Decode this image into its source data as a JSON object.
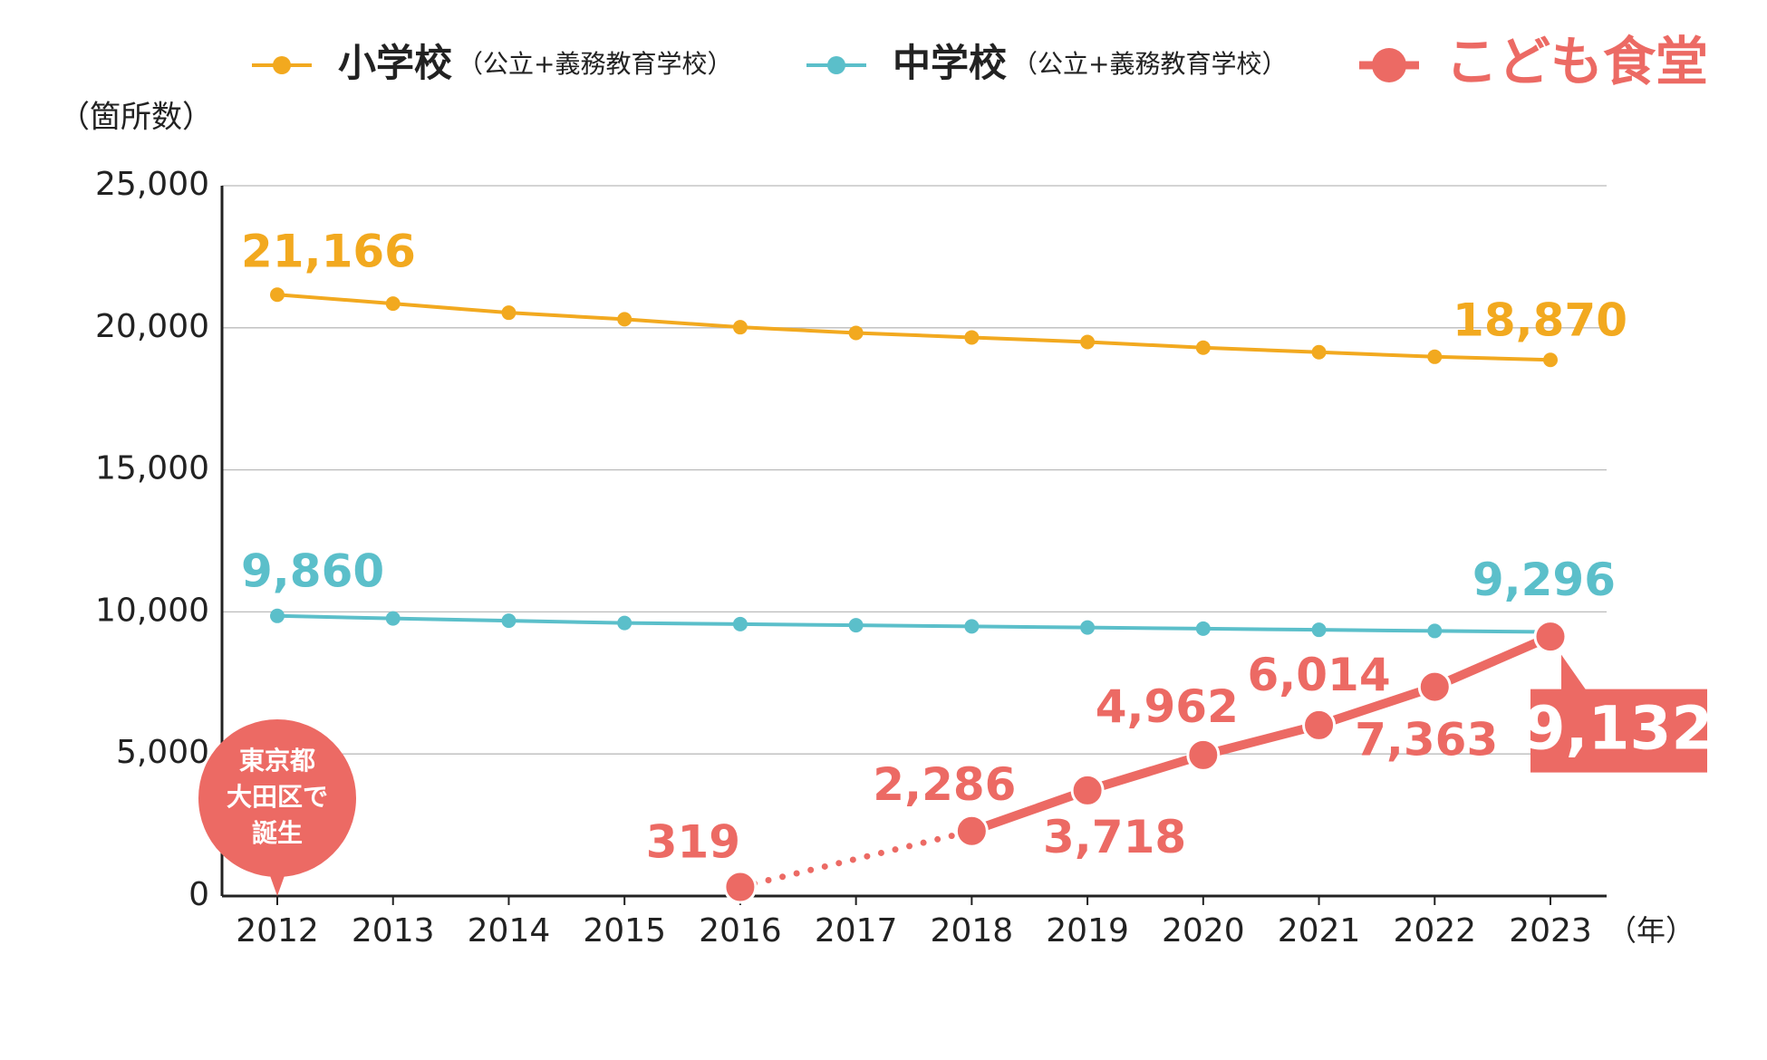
{
  "chart_data": {
    "type": "line",
    "y_label": "（箇所数）",
    "x_unit": "（年）",
    "categories": [
      "2012",
      "2013",
      "2014",
      "2015",
      "2016",
      "2017",
      "2018",
      "2019",
      "2020",
      "2021",
      "2022",
      "2023"
    ],
    "series": [
      {
        "name": "小学校",
        "name_note": "（公立+義務教育学校）",
        "color": "#f2a91f",
        "values": [
          21166,
          20850,
          20530,
          20300,
          20020,
          19820,
          19660,
          19500,
          19300,
          19140,
          18980,
          18870
        ],
        "value_labels": [
          "21,166",
          null,
          null,
          null,
          null,
          null,
          null,
          null,
          null,
          null,
          null,
          "18,870"
        ]
      },
      {
        "name": "中学校",
        "name_note": "（公立+義務教育学校）",
        "color": "#5bbfca",
        "values": [
          9860,
          9770,
          9690,
          9610,
          9570,
          9530,
          9490,
          9450,
          9410,
          9370,
          9330,
          9296
        ],
        "value_labels": [
          "9,860",
          null,
          null,
          null,
          null,
          null,
          null,
          null,
          null,
          null,
          null,
          "9,296"
        ]
      },
      {
        "name": "こども食堂",
        "color": "#ec6a64",
        "gap_style": "dotted",
        "values": [
          null,
          null,
          null,
          null,
          319,
          null,
          2286,
          3718,
          4962,
          6014,
          7363,
          9132
        ],
        "value_labels": [
          null,
          null,
          null,
          null,
          "319",
          null,
          "2,286",
          "3,718",
          "4,962",
          "6,014",
          "7,363",
          "9,132"
        ]
      }
    ],
    "ylim": [
      0,
      25000
    ],
    "yticks": [
      0,
      {
        "value": 5000,
        "label": "5,000"
      },
      {
        "value": 10000,
        "label": "10,000"
      },
      {
        "value": 15000,
        "label": "15,000"
      },
      {
        "value": 20000,
        "label": "20,000"
      },
      {
        "value": 25000,
        "label": "25,000"
      }
    ],
    "grid": true,
    "annotation": {
      "category_index": 0,
      "lines": [
        "東京都",
        "大田区で",
        "誕生"
      ],
      "color": "#ec6a64"
    }
  }
}
